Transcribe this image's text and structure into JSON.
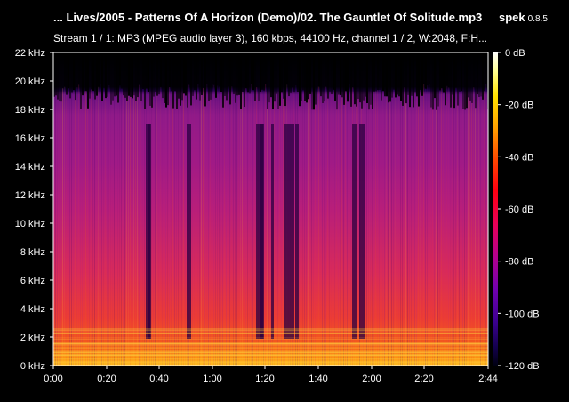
{
  "window": {
    "title": "... Lives/2005 - Patterns Of A Horizon (Demo)/02. The Gauntlet Of Solitude.mp3",
    "app_name": "spek",
    "app_version": "0.8.5"
  },
  "stream_info": "Stream 1 / 1: MP3 (MPEG audio layer 3), 160 kbps, 44100 Hz, channel 1 / 2, W:2048, F:H...",
  "frequency_axis": {
    "labels": [
      "22 kHz",
      "20 kHz",
      "18 kHz",
      "16 kHz",
      "14 kHz",
      "12 kHz",
      "10 kHz",
      "8 kHz",
      "6 kHz",
      "4 kHz",
      "2 kHz",
      "0 kHz"
    ]
  },
  "time_axis": {
    "labels": [
      "0:00",
      "0:20",
      "0:40",
      "1:00",
      "1:20",
      "1:40",
      "2:00",
      "2:20",
      "2:44"
    ]
  },
  "db_scale": {
    "labels": [
      "0 dB",
      "-20 dB",
      "-40 dB",
      "-60 dB",
      "-80 dB",
      "-100 dB",
      "-120 dB"
    ]
  },
  "colors": {
    "background": "#000000",
    "text": "#ffffff",
    "spectrum_low": "#ffc020",
    "spectrum_mid": "#d82a5a",
    "spectrum_high": "#901a88"
  }
}
